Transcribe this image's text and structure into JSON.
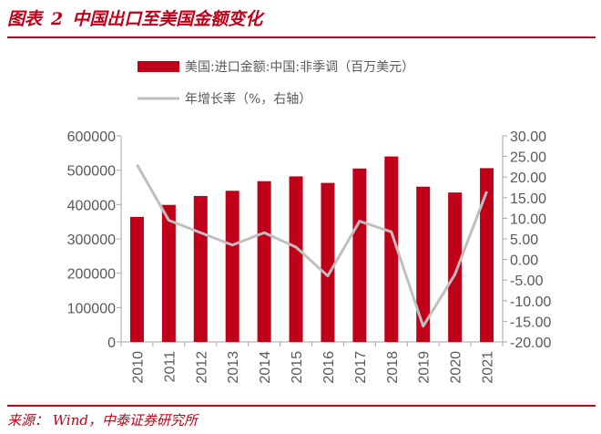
{
  "header": {
    "figure_label": "图表",
    "figure_number": "2",
    "figure_title": "中国出口至美国金额变化"
  },
  "footer": {
    "source": "来源： Wind，中泰证券研究所"
  },
  "colors": {
    "accent": "#c00018",
    "bar": "#c00018",
    "line": "#bfbfbf",
    "axis": "#595959"
  },
  "chart_data": {
    "type": "bar",
    "title": "中国出口至美国金额变化",
    "categories": [
      "2010",
      "2011",
      "2012",
      "2013",
      "2014",
      "2015",
      "2016",
      "2017",
      "2018",
      "2019",
      "2020",
      "2021"
    ],
    "series": [
      {
        "name": "美国:进口金额:中国:非季调（百万美元）",
        "type": "bar",
        "axis": "left",
        "values": [
          364000,
          399000,
          425000,
          440000,
          468000,
          482000,
          463000,
          505000,
          540000,
          452000,
          435000,
          506000
        ]
      },
      {
        "name": "年增长率（%，右轴）",
        "type": "line",
        "axis": "right",
        "values": [
          23.0,
          9.5,
          6.5,
          3.5,
          6.5,
          3.0,
          -4.0,
          9.3,
          6.7,
          -16.2,
          -3.6,
          16.5
        ]
      }
    ],
    "left_axis": {
      "ylim": [
        0,
        600000
      ],
      "ticks": [
        0,
        100000,
        200000,
        300000,
        400000,
        500000,
        600000
      ],
      "tick_labels": [
        "0",
        "100000",
        "200000",
        "300000",
        "400000",
        "500000",
        "600000"
      ]
    },
    "right_axis": {
      "ylim": [
        -20,
        30
      ],
      "ticks": [
        -20,
        -15,
        -10,
        -5,
        0,
        5,
        10,
        15,
        20,
        25,
        30
      ],
      "tick_labels": [
        "-20.00",
        "-15.00",
        "-10.00",
        "-5.00",
        "0.00",
        "5.00",
        "10.00",
        "15.00",
        "20.00",
        "25.00",
        "30.00"
      ]
    },
    "legend_position": "top"
  }
}
